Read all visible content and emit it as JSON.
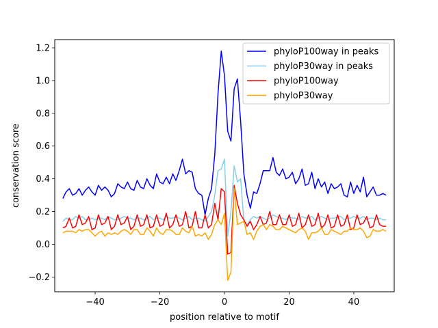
{
  "chart_data": {
    "type": "line",
    "title": "",
    "xlabel": "position relative to motif",
    "ylabel": "conservation score",
    "xlim": [
      -52.5,
      52.5
    ],
    "ylim": [
      -0.29,
      1.25
    ],
    "xticks": [
      -40,
      -20,
      0,
      20,
      40
    ],
    "yticks": [
      -0.2,
      0.0,
      0.2,
      0.4,
      0.6,
      0.8,
      1.0,
      1.2
    ],
    "ytick_labels": [
      "−0.2",
      "0.0",
      "0.2",
      "0.4",
      "0.6",
      "0.8",
      "1.0",
      "1.2"
    ],
    "xtick_labels": [
      "−40",
      "−20",
      "0",
      "20",
      "40"
    ],
    "grid": false,
    "legend_position": "top-right",
    "x": [
      -50,
      -49,
      -48,
      -47,
      -46,
      -45,
      -44,
      -43,
      -42,
      -41,
      -40,
      -39,
      -38,
      -37,
      -36,
      -35,
      -34,
      -33,
      -32,
      -31,
      -30,
      -29,
      -28,
      -27,
      -26,
      -25,
      -24,
      -23,
      -22,
      -21,
      -20,
      -19,
      -18,
      -17,
      -16,
      -15,
      -14,
      -13,
      -12,
      -11,
      -10,
      -9,
      -8,
      -7,
      -6,
      -5,
      -4,
      -3,
      -2,
      -1,
      0,
      1,
      2,
      3,
      4,
      5,
      6,
      7,
      8,
      9,
      10,
      11,
      12,
      13,
      14,
      15,
      16,
      17,
      18,
      19,
      20,
      21,
      22,
      23,
      24,
      25,
      26,
      27,
      28,
      29,
      30,
      31,
      32,
      33,
      34,
      35,
      36,
      37,
      38,
      39,
      40,
      41,
      42,
      43,
      44,
      45,
      46,
      47,
      48,
      49,
      50
    ],
    "series": [
      {
        "name": "phyloP100way in peaks",
        "color": "#0000ff",
        "values": [
          0.28,
          0.32,
          0.34,
          0.3,
          0.31,
          0.34,
          0.3,
          0.33,
          0.35,
          0.32,
          0.3,
          0.36,
          0.33,
          0.35,
          0.33,
          0.29,
          0.31,
          0.37,
          0.35,
          0.34,
          0.38,
          0.34,
          0.33,
          0.39,
          0.35,
          0.34,
          0.4,
          0.36,
          0.34,
          0.43,
          0.38,
          0.37,
          0.41,
          0.37,
          0.43,
          0.39,
          0.45,
          0.52,
          0.43,
          0.45,
          0.44,
          0.34,
          0.31,
          0.3,
          0.18,
          0.28,
          0.34,
          0.55,
          0.92,
          1.18,
          1.03,
          0.69,
          0.63,
          0.95,
          1.01,
          0.75,
          0.43,
          0.3,
          0.22,
          0.32,
          0.31,
          0.37,
          0.45,
          0.45,
          0.45,
          0.53,
          0.44,
          0.42,
          0.46,
          0.4,
          0.41,
          0.44,
          0.37,
          0.4,
          0.46,
          0.36,
          0.37,
          0.44,
          0.34,
          0.4,
          0.35,
          0.38,
          0.31,
          0.37,
          0.34,
          0.35,
          0.37,
          0.3,
          0.29,
          0.38,
          0.31,
          0.36,
          0.32,
          0.41,
          0.29,
          0.32,
          0.35,
          0.3,
          0.3,
          0.31,
          0.3
        ]
      },
      {
        "name": "phyloP30way in peaks",
        "color": "#87ceeb",
        "values": [
          0.14,
          0.16,
          0.15,
          0.15,
          0.17,
          0.16,
          0.17,
          0.15,
          0.15,
          0.16,
          0.15,
          0.16,
          0.16,
          0.15,
          0.17,
          0.16,
          0.15,
          0.15,
          0.16,
          0.17,
          0.16,
          0.16,
          0.15,
          0.16,
          0.16,
          0.15,
          0.16,
          0.17,
          0.15,
          0.16,
          0.16,
          0.15,
          0.17,
          0.16,
          0.16,
          0.17,
          0.16,
          0.15,
          0.16,
          0.17,
          0.15,
          0.16,
          0.16,
          0.15,
          0.14,
          0.17,
          0.2,
          0.3,
          0.45,
          0.46,
          0.52,
          0.05,
          0.2,
          0.48,
          0.38,
          0.4,
          0.14,
          0.12,
          0.15,
          0.17,
          0.16,
          0.17,
          0.16,
          0.15,
          0.16,
          0.18,
          0.17,
          0.16,
          0.16,
          0.15,
          0.17,
          0.16,
          0.16,
          0.15,
          0.17,
          0.16,
          0.16,
          0.17,
          0.15,
          0.16,
          0.17,
          0.16,
          0.15,
          0.16,
          0.16,
          0.17,
          0.17,
          0.15,
          0.16,
          0.16,
          0.17,
          0.16,
          0.16,
          0.17,
          0.15,
          0.16,
          0.16,
          0.15,
          0.16,
          0.15,
          0.15
        ]
      },
      {
        "name": "phyloP100way",
        "color": "#ff0000",
        "values": [
          0.1,
          0.11,
          0.16,
          0.1,
          0.11,
          0.18,
          0.12,
          0.13,
          0.17,
          0.09,
          0.1,
          0.18,
          0.12,
          0.13,
          0.17,
          0.09,
          0.11,
          0.18,
          0.12,
          0.13,
          0.17,
          0.09,
          0.11,
          0.18,
          0.11,
          0.12,
          0.18,
          0.1,
          0.11,
          0.18,
          0.11,
          0.12,
          0.19,
          0.1,
          0.12,
          0.18,
          0.11,
          0.12,
          0.2,
          0.1,
          0.11,
          0.2,
          0.1,
          0.1,
          0.18,
          0.1,
          0.12,
          0.25,
          0.15,
          0.34,
          0.32,
          -0.06,
          -0.05,
          0.36,
          0.25,
          0.18,
          0.15,
          0.11,
          0.14,
          0.09,
          0.12,
          0.17,
          0.12,
          0.13,
          0.2,
          0.12,
          0.12,
          0.18,
          0.12,
          0.12,
          0.18,
          0.11,
          0.12,
          0.19,
          0.1,
          0.12,
          0.18,
          0.11,
          0.12,
          0.19,
          0.1,
          0.12,
          0.18,
          0.1,
          0.11,
          0.18,
          0.11,
          0.12,
          0.18,
          0.09,
          0.1,
          0.18,
          0.12,
          0.13,
          0.17,
          0.1,
          0.11,
          0.18,
          0.12,
          0.11,
          0.11
        ]
      },
      {
        "name": "phyloP30way",
        "color": "#ffa500",
        "values": [
          0.07,
          0.08,
          0.08,
          0.08,
          0.07,
          0.09,
          0.08,
          0.09,
          0.09,
          0.07,
          0.05,
          0.07,
          0.08,
          0.05,
          0.07,
          0.06,
          0.07,
          0.06,
          0.08,
          0.09,
          0.08,
          0.06,
          0.09,
          0.09,
          0.06,
          0.06,
          0.1,
          0.08,
          0.05,
          0.1,
          0.07,
          0.06,
          0.09,
          0.09,
          0.08,
          0.06,
          0.06,
          0.1,
          0.08,
          0.07,
          0.11,
          0.05,
          0.06,
          0.05,
          0.07,
          0.03,
          0.06,
          0.12,
          0.15,
          0.12,
          0.19,
          -0.22,
          -0.17,
          0.34,
          0.12,
          0.13,
          0.14,
          0.06,
          0.07,
          0.03,
          0.08,
          0.11,
          0.12,
          0.09,
          0.12,
          0.11,
          0.09,
          0.09,
          0.11,
          0.1,
          0.09,
          0.08,
          0.07,
          0.09,
          0.1,
          0.08,
          0.03,
          0.07,
          0.07,
          0.08,
          0.1,
          0.06,
          0.06,
          0.09,
          0.08,
          0.07,
          0.06,
          0.08,
          0.08,
          0.1,
          0.09,
          0.09,
          0.1,
          0.08,
          0.04,
          0.05,
          0.09,
          0.08,
          0.08,
          0.09,
          0.08
        ]
      }
    ]
  }
}
